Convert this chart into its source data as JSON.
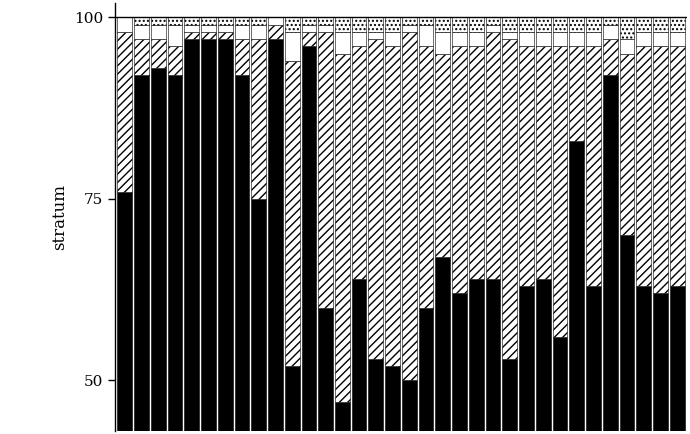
{
  "ylabel": "stratum",
  "ylim": [
    0,
    100
  ],
  "yticks": [
    50,
    75,
    100
  ],
  "background_color": "#ffffff",
  "n_bars": 34,
  "black_vals": [
    76,
    92,
    93,
    92,
    97,
    97,
    97,
    92,
    75,
    97,
    52,
    96,
    60,
    47,
    64,
    53,
    52,
    50,
    60,
    67,
    62,
    64,
    64,
    53,
    63,
    64,
    56,
    83,
    63,
    92,
    70,
    63,
    62,
    63
  ],
  "hatch_vals": [
    22,
    5,
    4,
    4,
    1,
    1,
    1,
    5,
    22,
    2,
    42,
    2,
    38,
    48,
    32,
    44,
    44,
    48,
    36,
    28,
    34,
    32,
    34,
    44,
    33,
    32,
    40,
    13,
    33,
    5,
    25,
    33,
    34,
    33
  ],
  "white_vals": [
    2,
    2,
    2,
    3,
    1,
    1,
    1,
    2,
    2,
    1,
    4,
    1,
    1,
    3,
    2,
    1,
    2,
    1,
    3,
    3,
    2,
    2,
    1,
    1,
    2,
    2,
    2,
    2,
    2,
    2,
    2,
    2,
    2,
    2
  ],
  "dot_vals": [
    0,
    1,
    1,
    1,
    1,
    1,
    1,
    1,
    1,
    0,
    2,
    1,
    1,
    2,
    2,
    2,
    2,
    1,
    1,
    2,
    2,
    2,
    1,
    2,
    2,
    2,
    2,
    2,
    2,
    1,
    3,
    2,
    2,
    2
  ],
  "figsize": [
    6.9,
    4.34
  ],
  "dpi": 100
}
